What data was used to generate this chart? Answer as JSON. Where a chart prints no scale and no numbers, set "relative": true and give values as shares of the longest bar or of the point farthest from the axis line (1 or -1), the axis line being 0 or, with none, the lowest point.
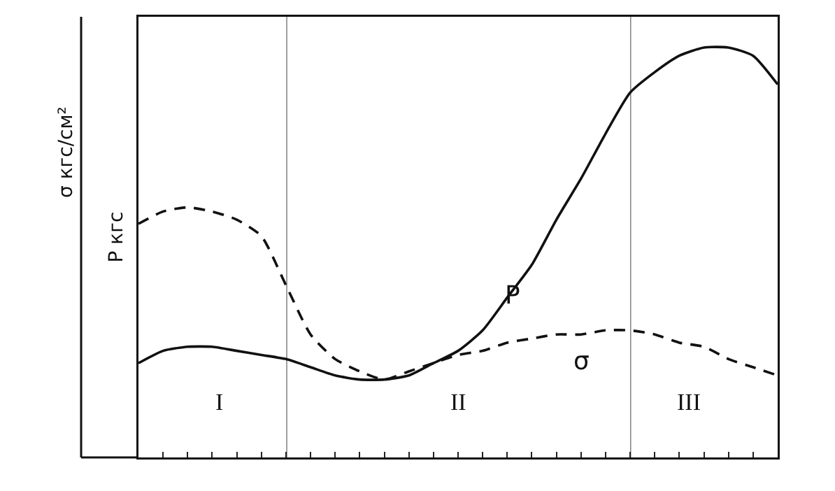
{
  "chart_data": {
    "type": "line",
    "relative": true,
    "ylabel": "Р кгс",
    "y2label": "σ кгс/см²",
    "categories": [
      null,
      null,
      null,
      null,
      null,
      null,
      null,
      null,
      null,
      null,
      null,
      null,
      null,
      null,
      null,
      null,
      null,
      null,
      null,
      null,
      null,
      null,
      null,
      null,
      null,
      null,
      null
    ],
    "series": [
      {
        "name": "Р",
        "color": "#111111",
        "line_style": "solid",
        "values": [
          0.23,
          0.26,
          0.27,
          0.27,
          0.26,
          0.25,
          0.24,
          0.22,
          0.2,
          0.19,
          0.19,
          0.2,
          0.23,
          0.26,
          0.31,
          0.39,
          0.47,
          0.58,
          0.68,
          0.79,
          0.89,
          0.94,
          0.98,
          1.0,
          1.0,
          0.98,
          0.91
        ]
      },
      {
        "name": "σ",
        "color": "#111111",
        "line_style": "dashed",
        "values": [
          0.57,
          0.6,
          0.61,
          0.6,
          0.58,
          0.54,
          0.42,
          0.3,
          0.24,
          0.21,
          0.19,
          0.21,
          0.23,
          0.25,
          0.26,
          0.28,
          0.29,
          0.3,
          0.3,
          0.31,
          0.31,
          0.3,
          0.28,
          0.27,
          0.24,
          0.22,
          0.2
        ]
      }
    ],
    "annotations": [
      "I",
      "II",
      "III"
    ],
    "grid": false,
    "legend": false,
    "marker": "none"
  }
}
